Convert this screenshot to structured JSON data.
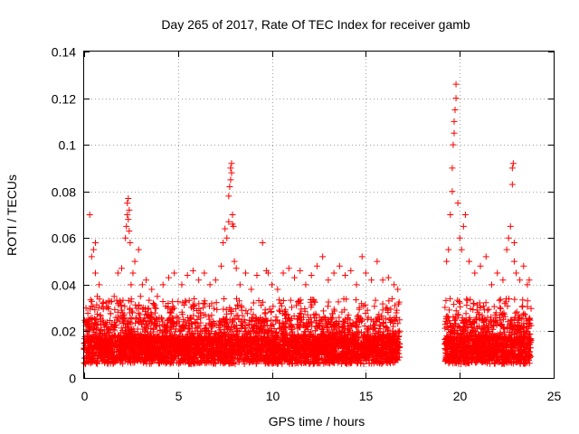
{
  "chart_data": {
    "type": "scatter",
    "title": "Day 265 of 2017, Rate Of TEC Index for receiver gamb",
    "xlabel": "GPS time / hours",
    "ylabel": "ROTI / TECUs",
    "xlim": [
      0,
      25
    ],
    "ylim": [
      0,
      0.14
    ],
    "xticks": [
      0,
      5,
      10,
      15,
      20,
      25
    ],
    "xtick_labels": [
      "0",
      "5",
      "10",
      "15",
      "20",
      "25"
    ],
    "yticks": [
      0,
      0.02,
      0.04,
      0.06,
      0.08,
      0.1,
      0.12,
      0.14
    ],
    "ytick_labels": [
      "0",
      "0.02",
      "0.04",
      "0.06",
      "0.08",
      "0.1",
      "0.12",
      "0.14"
    ],
    "grid": true,
    "marker": "+",
    "color": "#ff0000",
    "series": [
      {
        "name": "ROTI",
        "description": "Dense scatter of per-satellite ROTI values; baseline cloud 0.005-0.03 TECU/min across 0-16.8 h and 19.2-23.8 h, data gap 16.8-19.2 h",
        "x": [
          0.1,
          0.3,
          0.4,
          0.5,
          0.6,
          0.6,
          0.7,
          0.8,
          1.0,
          1.3,
          1.6,
          1.8,
          2.0,
          2.2,
          2.25,
          2.3,
          2.3,
          2.35,
          2.35,
          2.4,
          2.4,
          2.45,
          2.5,
          2.6,
          2.7,
          2.9,
          3.0,
          3.1,
          3.3,
          3.6,
          3.9,
          4.2,
          4.5,
          4.8,
          5.2,
          5.5,
          5.8,
          6.1,
          6.4,
          6.7,
          7.0,
          7.3,
          7.4,
          7.5,
          7.6,
          7.7,
          7.7,
          7.75,
          7.8,
          7.8,
          7.85,
          7.85,
          7.9,
          7.9,
          7.95,
          8.0,
          8.1,
          8.3,
          8.6,
          8.9,
          9.2,
          9.5,
          9.7,
          9.8,
          10.0,
          10.3,
          10.6,
          10.9,
          11.2,
          11.5,
          11.8,
          12.1,
          12.4,
          12.7,
          13.0,
          13.3,
          13.6,
          13.9,
          14.2,
          14.5,
          14.8,
          15.0,
          15.3,
          15.6,
          15.9,
          16.2,
          16.5,
          16.7,
          19.3,
          19.4,
          19.5,
          19.6,
          19.6,
          19.65,
          19.7,
          19.7,
          19.75,
          19.8,
          19.8,
          19.9,
          20.0,
          20.1,
          20.2,
          20.3,
          20.5,
          20.8,
          21.1,
          21.4,
          21.7,
          22.0,
          22.3,
          22.5,
          22.6,
          22.7,
          22.8,
          22.8,
          22.85,
          22.9,
          22.9,
          23.0,
          23.2,
          23.4,
          23.6,
          23.7
        ],
        "y": [
          0.03,
          0.07,
          0.052,
          0.055,
          0.058,
          0.045,
          0.035,
          0.04,
          0.032,
          0.033,
          0.035,
          0.045,
          0.047,
          0.06,
          0.065,
          0.07,
          0.075,
          0.068,
          0.077,
          0.072,
          0.063,
          0.058,
          0.04,
          0.045,
          0.05,
          0.055,
          0.035,
          0.04,
          0.042,
          0.038,
          0.035,
          0.04,
          0.043,
          0.045,
          0.04,
          0.044,
          0.046,
          0.042,
          0.045,
          0.04,
          0.042,
          0.048,
          0.058,
          0.064,
          0.06,
          0.067,
          0.078,
          0.082,
          0.085,
          0.09,
          0.092,
          0.088,
          0.07,
          0.066,
          0.065,
          0.05,
          0.047,
          0.04,
          0.045,
          0.038,
          0.044,
          0.058,
          0.046,
          0.045,
          0.04,
          0.038,
          0.045,
          0.047,
          0.043,
          0.046,
          0.04,
          0.044,
          0.048,
          0.052,
          0.042,
          0.045,
          0.048,
          0.044,
          0.046,
          0.04,
          0.052,
          0.045,
          0.042,
          0.05,
          0.042,
          0.043,
          0.04,
          0.038,
          0.05,
          0.055,
          0.07,
          0.08,
          0.09,
          0.1,
          0.105,
          0.11,
          0.115,
          0.12,
          0.126,
          0.075,
          0.06,
          0.055,
          0.065,
          0.07,
          0.05,
          0.045,
          0.048,
          0.052,
          0.04,
          0.045,
          0.042,
          0.055,
          0.06,
          0.065,
          0.083,
          0.09,
          0.092,
          0.058,
          0.05,
          0.045,
          0.042,
          0.048,
          0.04,
          0.042
        ]
      }
    ]
  }
}
